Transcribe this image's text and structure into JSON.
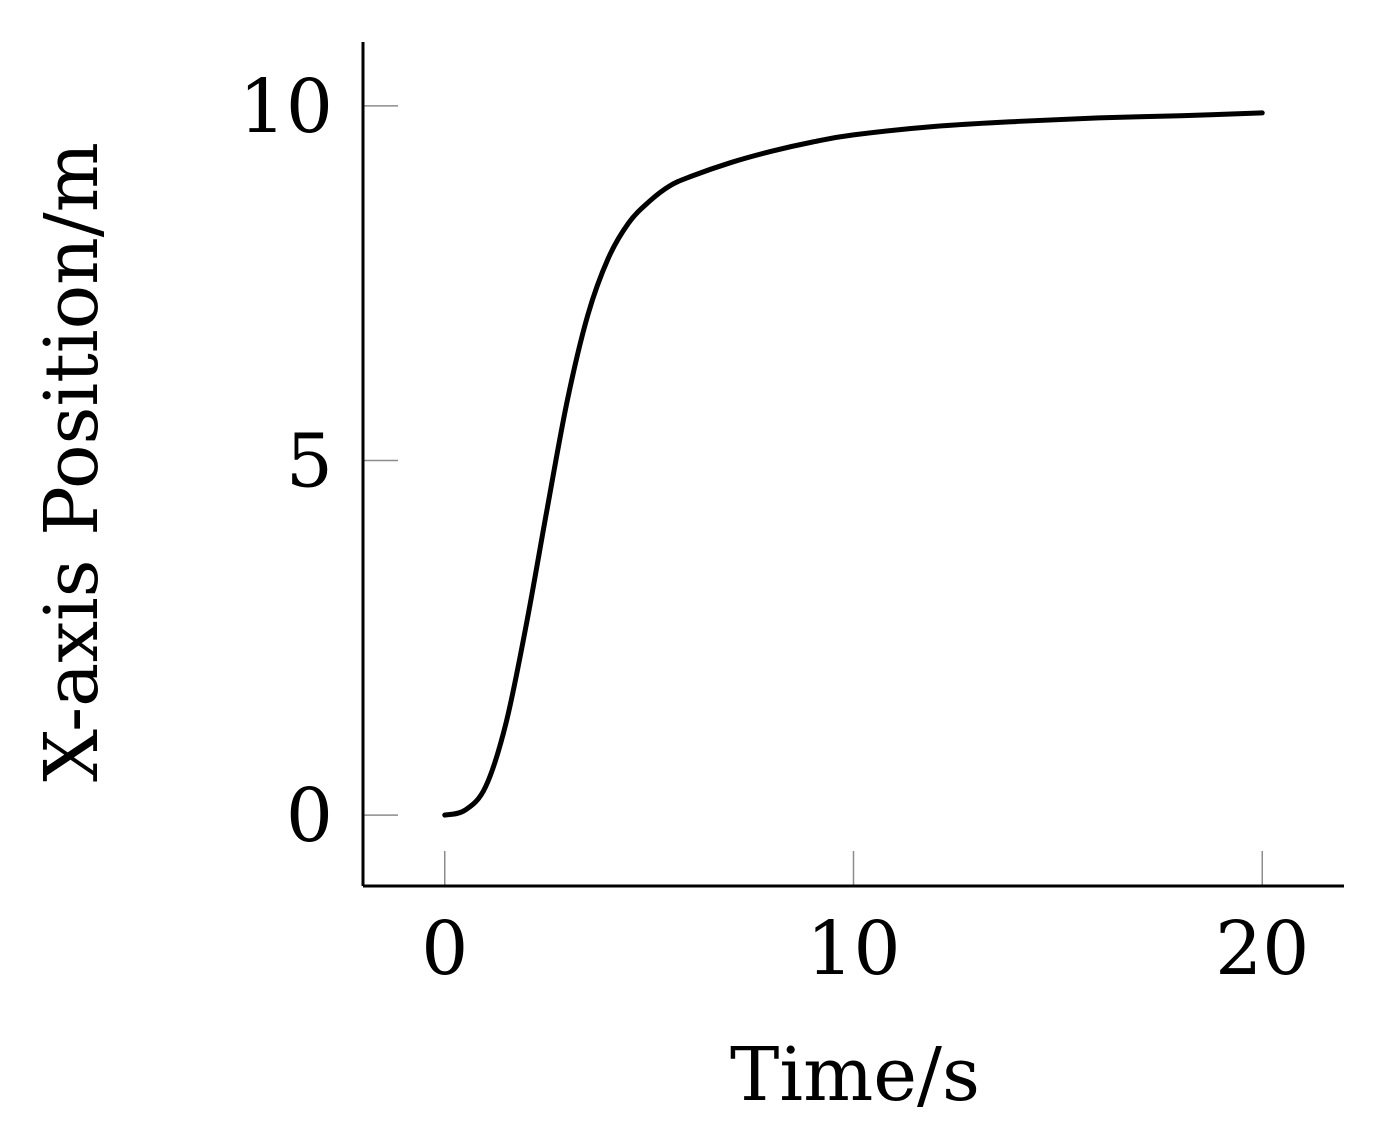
{
  "chart_data": {
    "type": "line",
    "xlabel": "Time/s",
    "ylabel": "X-axis Position/m",
    "xlim": [
      -2,
      22
    ],
    "ylim": [
      -1,
      10.9
    ],
    "xticks": [
      0,
      10,
      20
    ],
    "yticks": [
      0,
      5,
      10
    ],
    "xtick_labels": [
      "0",
      "10",
      "20"
    ],
    "ytick_labels": [
      "0",
      "5",
      "10"
    ],
    "grid": false,
    "series": [
      {
        "color": "#000000",
        "x": [
          0,
          0.5,
          1,
          1.5,
          2,
          2.5,
          3,
          3.5,
          4,
          4.5,
          5,
          5.5,
          6,
          7,
          8,
          9,
          10,
          12,
          14,
          16,
          18,
          20
        ],
        "y": [
          0,
          0.07,
          0.4,
          1.3,
          2.7,
          4.3,
          5.85,
          7.05,
          7.85,
          8.35,
          8.65,
          8.87,
          9.0,
          9.2,
          9.36,
          9.49,
          9.59,
          9.71,
          9.78,
          9.83,
          9.86,
          9.9
        ]
      }
    ]
  }
}
